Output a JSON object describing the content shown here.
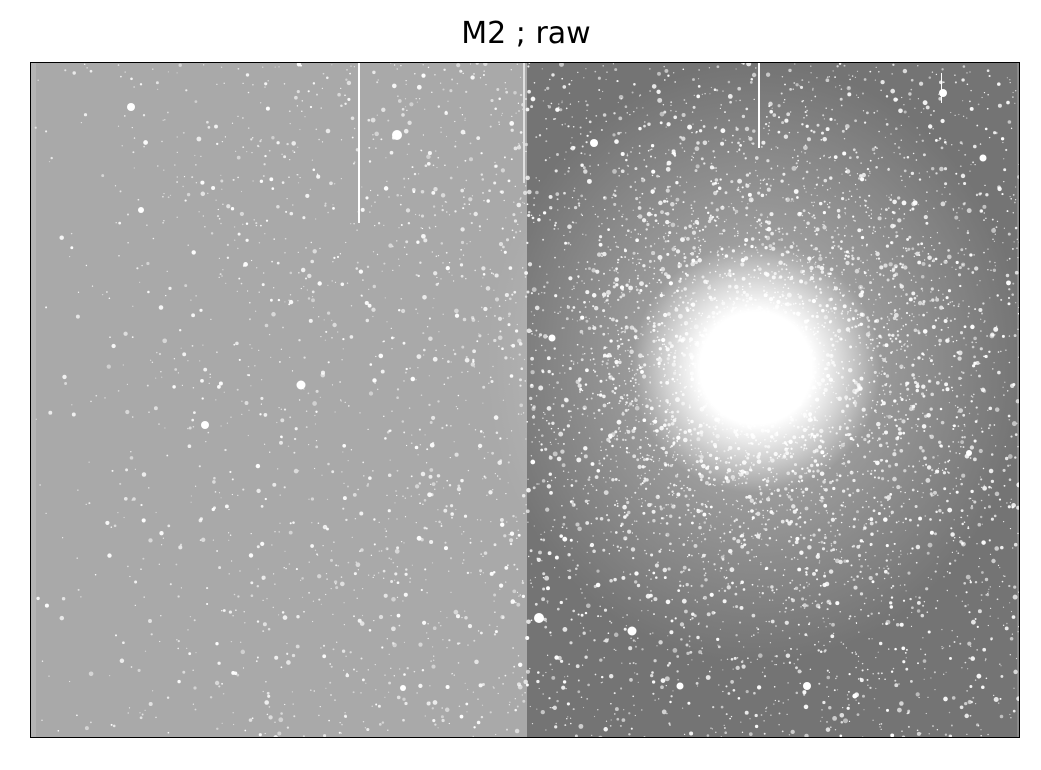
{
  "title": "M2 ; raw",
  "image": {
    "subject": "M2",
    "colors": {
      "left_half": "#a9a9a9",
      "right_half": "#747474",
      "star": "#ffffff",
      "frame": "#000000"
    }
  }
}
